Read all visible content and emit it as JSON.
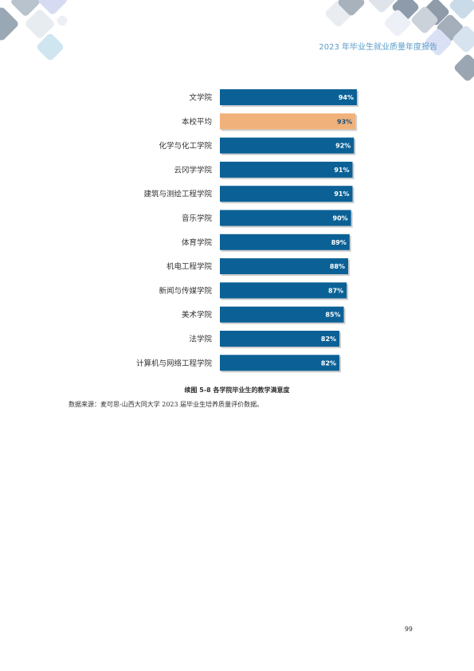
{
  "header": {
    "title": "2023 年毕业生就业质量年度报告"
  },
  "colors": {
    "bar": "#0b6196",
    "highlight": "#f0b27a",
    "header_text": "#5b9bc8"
  },
  "chart_data": {
    "type": "bar",
    "orientation": "horizontal",
    "title": "续图 5-8 各学院毕业生的教学满意度",
    "categories": [
      "文学院",
      "本校平均",
      "化学与化工学院",
      "云冈学学院",
      "建筑与测绘工程学院",
      "音乐学院",
      "体育学院",
      "机电工程学院",
      "新闻与传媒学院",
      "美术学院",
      "法学院",
      "计算机与网络工程学院"
    ],
    "values": [
      94,
      93,
      92,
      91,
      91,
      90,
      89,
      88,
      87,
      85,
      82,
      82
    ],
    "value_labels": [
      "94%",
      "93%",
      "92%",
      "91%",
      "91%",
      "90%",
      "89%",
      "88%",
      "87%",
      "85%",
      "82%",
      "82%"
    ],
    "highlight_category": "本校平均",
    "unit": "%",
    "grid": false,
    "legend": "none"
  },
  "caption": "续图 5-8 各学院毕业生的教学满意度",
  "source": "数据来源：麦可思-山西大同大学 2023 届毕业生培养质量评价数据。",
  "page_number": "99"
}
